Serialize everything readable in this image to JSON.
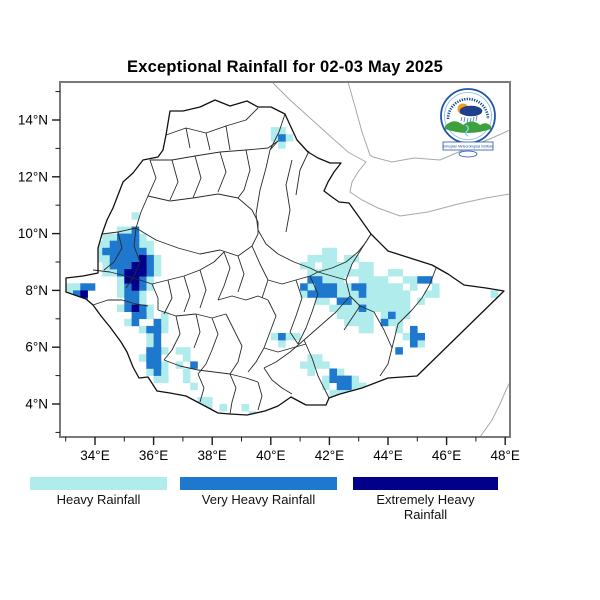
{
  "title": "Exceptional Rainfall for 02-03 May 2025",
  "logo": {
    "name": "Ethiopian Meteorological Institute emblem",
    "banner_text": "Ethiopian Meteorological Institute"
  },
  "axes": {
    "x": {
      "tick_values": [
        34,
        36,
        38,
        40,
        42,
        44,
        46,
        48
      ],
      "tick_labels": [
        "34°E",
        "36°E",
        "38°E",
        "40°E",
        "42°E",
        "44°E",
        "46°E",
        "48°E"
      ],
      "minor_values": [
        33,
        35,
        37,
        39,
        41,
        43,
        45,
        47
      ]
    },
    "y": {
      "tick_values": [
        14,
        12,
        10,
        8,
        6,
        4
      ],
      "tick_labels": [
        "14°N",
        "12°N",
        "10°N",
        "8°N",
        "6°N",
        "4°N"
      ],
      "minor_values": [
        15,
        13,
        11,
        9,
        7,
        5,
        3
      ]
    }
  },
  "legend": [
    {
      "label": "Heavy Rainfall",
      "color": "#B0ECEC"
    },
    {
      "label": "Very Heavy Rainfall",
      "color": "#1E78CD"
    },
    {
      "label": "Extremely Heavy Rainfall",
      "color": "#00008B"
    }
  ],
  "chart_data": {
    "type": "heatmap",
    "title": "Exceptional Rainfall for 02-03 May 2025",
    "region": "Ethiopia",
    "lon_range": [
      32.8,
      48.2
    ],
    "lat_range": [
      2.85,
      15.35
    ],
    "cell_size_deg": 0.25,
    "categories": [
      "Heavy Rainfall",
      "Very Heavy Rainfall",
      "Extremely Heavy Rainfall"
    ],
    "run_format": "[lon_west_deg_E, lat_north_deg_N, n_cells_eastward]",
    "cells": {
      "heavy": [
        [
          40.0,
          13.75,
          2
        ],
        [
          40.0,
          13.5,
          1
        ],
        [
          40.5,
          13.5,
          1
        ],
        [
          40.25,
          13.25,
          1
        ],
        [
          35.25,
          10.75,
          1
        ],
        [
          34.75,
          10.25,
          2
        ],
        [
          34.25,
          10.0,
          2
        ],
        [
          35.5,
          10.0,
          1
        ],
        [
          34.0,
          9.75,
          2
        ],
        [
          35.5,
          9.75,
          2
        ],
        [
          34.0,
          9.5,
          1
        ],
        [
          35.75,
          9.5,
          1
        ],
        [
          34.0,
          9.25,
          2
        ],
        [
          36.0,
          9.25,
          1
        ],
        [
          34.25,
          9.0,
          1
        ],
        [
          36.0,
          9.0,
          1
        ],
        [
          34.25,
          8.75,
          2
        ],
        [
          36.0,
          8.75,
          1
        ],
        [
          34.75,
          8.5,
          1
        ],
        [
          35.75,
          8.5,
          1
        ],
        [
          34.75,
          8.25,
          1
        ],
        [
          35.75,
          8.25,
          1
        ],
        [
          34.75,
          8.0,
          1
        ],
        [
          35.5,
          8.0,
          1
        ],
        [
          33.0,
          8.25,
          2
        ],
        [
          33.0,
          8.0,
          1
        ],
        [
          33.5,
          8.0,
          1
        ],
        [
          33.25,
          7.75,
          1
        ],
        [
          35.5,
          7.75,
          1
        ],
        [
          34.75,
          7.5,
          1
        ],
        [
          35.75,
          7.5,
          1
        ],
        [
          35.75,
          7.25,
          1
        ],
        [
          36.25,
          7.25,
          1
        ],
        [
          35.0,
          7.0,
          1
        ],
        [
          36.25,
          7.0,
          1
        ],
        [
          35.5,
          6.75,
          1
        ],
        [
          36.25,
          6.75,
          1
        ],
        [
          35.75,
          6.5,
          1
        ],
        [
          35.75,
          6.25,
          1
        ],
        [
          36.25,
          6.0,
          1
        ],
        [
          35.5,
          5.75,
          1
        ],
        [
          36.25,
          5.5,
          1
        ],
        [
          35.75,
          5.25,
          1
        ],
        [
          36.25,
          5.25,
          1
        ],
        [
          36.0,
          5.0,
          2
        ],
        [
          36.75,
          6.0,
          2
        ],
        [
          37.0,
          5.75,
          1
        ],
        [
          36.75,
          5.5,
          1
        ],
        [
          37.0,
          5.25,
          1
        ],
        [
          37.0,
          5.0,
          1
        ],
        [
          37.25,
          4.75,
          1
        ],
        [
          37.5,
          4.25,
          2
        ],
        [
          37.75,
          4.0,
          1
        ],
        [
          38.25,
          4.0,
          1
        ],
        [
          39.0,
          4.0,
          1
        ],
        [
          39.25,
          3.75,
          1
        ],
        [
          40.0,
          6.5,
          1
        ],
        [
          40.5,
          6.5,
          2
        ],
        [
          40.25,
          6.25,
          1
        ],
        [
          41.75,
          9.5,
          2
        ],
        [
          41.25,
          9.25,
          4
        ],
        [
          42.5,
          9.25,
          2
        ],
        [
          41.0,
          9.0,
          2
        ],
        [
          41.75,
          9.0,
          4
        ],
        [
          43.0,
          9.0,
          2
        ],
        [
          41.25,
          8.75,
          6
        ],
        [
          42.75,
          8.75,
          3
        ],
        [
          44.0,
          8.75,
          2
        ],
        [
          41.75,
          8.5,
          3
        ],
        [
          43.0,
          8.5,
          4
        ],
        [
          44.5,
          8.5,
          2
        ],
        [
          45.25,
          8.5,
          1
        ],
        [
          41.25,
          8.25,
          1
        ],
        [
          42.25,
          8.25,
          2
        ],
        [
          43.25,
          8.25,
          5
        ],
        [
          44.75,
          8.25,
          1
        ],
        [
          45.5,
          8.25,
          1
        ],
        [
          41.0,
          8.0,
          1
        ],
        [
          42.25,
          8.0,
          3
        ],
        [
          43.25,
          8.0,
          6
        ],
        [
          45.25,
          8.0,
          2
        ],
        [
          47.5,
          8.0,
          1
        ],
        [
          41.5,
          7.75,
          2
        ],
        [
          42.75,
          7.75,
          8
        ],
        [
          45.0,
          7.75,
          1
        ],
        [
          42.0,
          7.5,
          4
        ],
        [
          43.25,
          7.5,
          6
        ],
        [
          42.25,
          7.25,
          5
        ],
        [
          43.75,
          7.25,
          1
        ],
        [
          44.25,
          7.25,
          2
        ],
        [
          42.5,
          7.0,
          4
        ],
        [
          44.0,
          7.0,
          2
        ],
        [
          43.0,
          6.75,
          2
        ],
        [
          44.25,
          6.75,
          1
        ],
        [
          44.5,
          6.5,
          1
        ],
        [
          45.0,
          6.25,
          1
        ],
        [
          41.25,
          5.75,
          2
        ],
        [
          41.0,
          5.5,
          3
        ],
        [
          41.75,
          5.5,
          1
        ],
        [
          41.25,
          5.25,
          1
        ],
        [
          42.25,
          5.25,
          1
        ],
        [
          41.75,
          5.0,
          1
        ],
        [
          42.75,
          5.0,
          1
        ],
        [
          41.75,
          4.75,
          1
        ],
        [
          42.75,
          4.75,
          2
        ],
        [
          42.0,
          4.5,
          3
        ]
      ],
      "very_heavy": [
        [
          40.25,
          13.5,
          1
        ],
        [
          35.25,
          10.25,
          1
        ],
        [
          34.75,
          10.0,
          3
        ],
        [
          34.5,
          9.75,
          4
        ],
        [
          34.25,
          9.5,
          6
        ],
        [
          34.5,
          9.25,
          4
        ],
        [
          35.75,
          9.25,
          1
        ],
        [
          34.5,
          9.0,
          3
        ],
        [
          35.75,
          9.0,
          1
        ],
        [
          34.75,
          8.75,
          1
        ],
        [
          35.75,
          8.75,
          1
        ],
        [
          35.5,
          8.5,
          1
        ],
        [
          35.0,
          8.25,
          1
        ],
        [
          35.5,
          8.25,
          1
        ],
        [
          35.0,
          8.0,
          2
        ],
        [
          33.5,
          8.25,
          2
        ],
        [
          33.25,
          8.0,
          1
        ],
        [
          33.5,
          7.75,
          1
        ],
        [
          33.25,
          7.5,
          2
        ],
        [
          35.0,
          7.75,
          2
        ],
        [
          35.0,
          7.5,
          1
        ],
        [
          35.5,
          7.5,
          1
        ],
        [
          35.25,
          7.25,
          2
        ],
        [
          35.25,
          7.0,
          1
        ],
        [
          36.0,
          7.0,
          1
        ],
        [
          35.75,
          6.75,
          2
        ],
        [
          36.0,
          6.5,
          1
        ],
        [
          36.0,
          6.25,
          1
        ],
        [
          35.75,
          6.0,
          2
        ],
        [
          35.75,
          5.75,
          2
        ],
        [
          35.75,
          5.5,
          2
        ],
        [
          36.0,
          5.25,
          1
        ],
        [
          37.25,
          5.5,
          1
        ],
        [
          40.25,
          6.5,
          1
        ],
        [
          41.25,
          8.5,
          2
        ],
        [
          45.0,
          8.5,
          2
        ],
        [
          41.0,
          8.25,
          1
        ],
        [
          41.5,
          8.25,
          3
        ],
        [
          42.75,
          8.25,
          2
        ],
        [
          41.25,
          8.0,
          4
        ],
        [
          43.0,
          8.0,
          1
        ],
        [
          42.25,
          7.75,
          2
        ],
        [
          43.0,
          7.5,
          1
        ],
        [
          44.0,
          7.25,
          1
        ],
        [
          43.75,
          7.0,
          1
        ],
        [
          44.75,
          6.75,
          1
        ],
        [
          44.75,
          6.5,
          2
        ],
        [
          44.75,
          6.25,
          1
        ],
        [
          44.25,
          6.0,
          1
        ],
        [
          42.0,
          5.25,
          1
        ],
        [
          42.0,
          5.0,
          3
        ],
        [
          42.25,
          4.75,
          2
        ]
      ],
      "extremely_heavy": [
        [
          35.5,
          9.25,
          1
        ],
        [
          35.25,
          9.0,
          2
        ],
        [
          35.0,
          8.75,
          3
        ],
        [
          35.0,
          8.5,
          2
        ],
        [
          35.25,
          8.25,
          1
        ],
        [
          35.25,
          7.5,
          1
        ],
        [
          33.5,
          8.0,
          1
        ]
      ]
    }
  }
}
